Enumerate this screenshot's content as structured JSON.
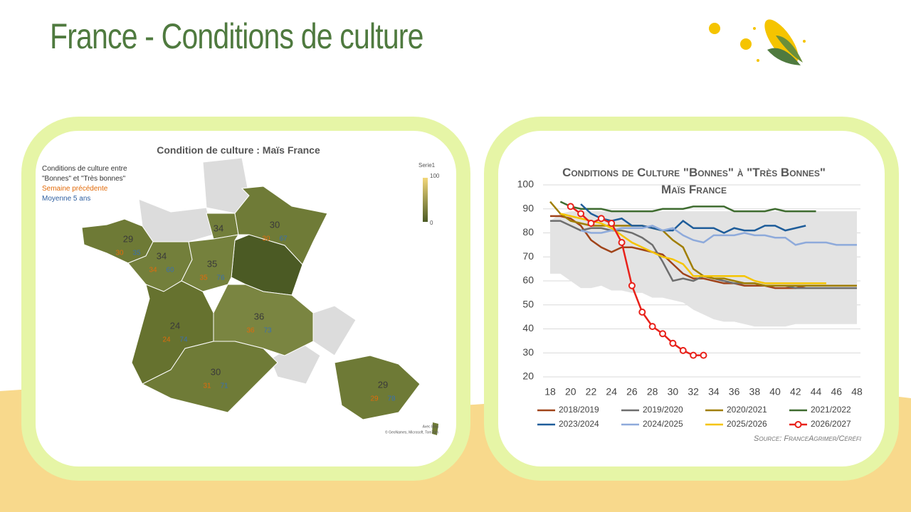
{
  "header": {
    "title": "France  - Conditions de culture"
  },
  "map": {
    "title": "Condition de culture : Maïs France",
    "legend": {
      "main": "Conditions de culture entre \"Bonnes\" et \"Très bonnes\"",
      "previous": "Semaine précédente",
      "average": "Moyenne 5 ans",
      "scale_title": "Serie1",
      "scale_max": "100",
      "scale_min": "0"
    },
    "attribution": "© GeoNames, Microsoft, TomTom",
    "bing": "Avec Bing",
    "regions": [
      {
        "value": "29",
        "previous": "30",
        "average": "35",
        "color": "#6e7a36"
      },
      {
        "value": "34",
        "previous": "34",
        "average": "60",
        "color": "#737f3b"
      },
      {
        "value": "34",
        "previous": "45",
        "average": "76",
        "color": "#737f3b"
      },
      {
        "value": "30",
        "previous": "30",
        "average": "67",
        "color": "#6f7b37"
      },
      {
        "value": "35",
        "previous": "35",
        "average": "76",
        "color": "#75813d"
      },
      {
        "value": "24",
        "previous": "24",
        "average": "74",
        "color": "#66722f"
      },
      {
        "value": "36",
        "previous": "36",
        "average": "73",
        "color": "#7a8541"
      },
      {
        "value": "30",
        "previous": "31",
        "average": "71",
        "color": "#6f7b37"
      },
      {
        "value": "29",
        "previous": "29",
        "average": "78",
        "color": "#6e7a36"
      }
    ]
  },
  "chart_data": {
    "type": "line",
    "title": "Conditions de Culture \"Bonnes\" à \"Très Bonnes\" Maïs France",
    "source": "Source: FranceAgrimer/Céréfi",
    "x": [
      18,
      19,
      20,
      21,
      22,
      23,
      24,
      25,
      26,
      27,
      28,
      29,
      30,
      31,
      32,
      33,
      34,
      35,
      36,
      37,
      38,
      39,
      40,
      41,
      42,
      43,
      44,
      45,
      46,
      47,
      48
    ],
    "xlim": [
      18,
      48
    ],
    "xticks": [
      18,
      20,
      22,
      24,
      26,
      28,
      30,
      32,
      34,
      36,
      38,
      40,
      42,
      44,
      46,
      48
    ],
    "ylim": [
      20,
      100
    ],
    "yticks": [
      20,
      30,
      40,
      50,
      60,
      70,
      80,
      90,
      100
    ],
    "grid": true,
    "band": {
      "color": "#e3e3e3",
      "upper": [
        85,
        88,
        89,
        89,
        89,
        89,
        89,
        89,
        89,
        89,
        89,
        89,
        89,
        89,
        89,
        89,
        89,
        89,
        89,
        89,
        89,
        89,
        89,
        89,
        89,
        89,
        89,
        89,
        89,
        89,
        89
      ],
      "lower": [
        63,
        63,
        60,
        57,
        57,
        58,
        56,
        56,
        55,
        55,
        53,
        53,
        52,
        51,
        48,
        46,
        44,
        43,
        43,
        42,
        41,
        41,
        41,
        41,
        42,
        42,
        42,
        42,
        42,
        42,
        42
      ]
    },
    "series": [
      {
        "name": "2018/2019",
        "color": "#a0441a",
        "values": [
          87,
          87,
          86,
          83,
          77,
          74,
          72,
          74,
          74,
          73,
          72,
          71,
          67,
          63,
          61,
          61,
          60,
          59,
          59,
          58,
          58,
          58,
          57,
          57,
          57,
          58,
          58,
          58,
          58,
          58,
          58
        ]
      },
      {
        "name": "2019/2020",
        "color": "#6e6e6e",
        "values": [
          85,
          85,
          83,
          81,
          82,
          82,
          81,
          81,
          80,
          78,
          75,
          68,
          60,
          61,
          60,
          62,
          61,
          60,
          59,
          59,
          59,
          58,
          58,
          58,
          57,
          57,
          57,
          57,
          57,
          57,
          57
        ]
      },
      {
        "name": "2020/2021",
        "color": "#a07e00",
        "values": [
          93,
          88,
          85,
          84,
          83,
          83,
          83,
          83,
          83,
          83,
          82,
          81,
          77,
          74,
          65,
          62,
          61,
          61,
          60,
          59,
          59,
          58,
          58,
          58,
          58,
          58,
          58,
          58,
          58,
          58,
          58
        ]
      },
      {
        "name": "2021/2022",
        "color": "#3e6b2f",
        "values": [
          null,
          93,
          91,
          90,
          90,
          90,
          89,
          89,
          89,
          89,
          89,
          90,
          90,
          90,
          91,
          91,
          91,
          91,
          89,
          89,
          89,
          89,
          90,
          89,
          89,
          89,
          89,
          null,
          null,
          null,
          null
        ]
      },
      {
        "name": "2023/2024",
        "color": "#1f5d9a",
        "values": [
          null,
          null,
          null,
          92,
          88,
          86,
          85,
          86,
          83,
          83,
          82,
          81,
          81,
          85,
          82,
          82,
          82,
          80,
          82,
          81,
          81,
          83,
          83,
          81,
          82,
          83,
          null,
          null,
          null,
          null,
          null
        ]
      },
      {
        "name": "2024/2025",
        "color": "#8eaadb",
        "values": [
          null,
          null,
          null,
          81,
          80,
          80,
          81,
          82,
          82,
          82,
          83,
          81,
          82,
          79,
          77,
          76,
          79,
          79,
          79,
          80,
          79,
          79,
          78,
          78,
          75,
          76,
          76,
          76,
          75,
          75,
          75
        ]
      },
      {
        "name": "2025/2026",
        "color": "#f5c400",
        "values": [
          null,
          88,
          87,
          86,
          85,
          84,
          82,
          79,
          76,
          74,
          72,
          70,
          69,
          67,
          62,
          62,
          62,
          62,
          62,
          62,
          60,
          59,
          59,
          59,
          59,
          59,
          59,
          59,
          null,
          null,
          null
        ]
      },
      {
        "name": "2026/2027",
        "color": "#e8211a",
        "markers": true,
        "values": [
          null,
          null,
          91,
          88,
          84,
          86,
          84,
          76,
          58,
          47,
          41,
          38,
          34,
          31,
          29,
          29,
          null,
          null,
          null,
          null,
          null,
          null,
          null,
          null,
          null,
          null,
          null,
          null,
          null,
          null,
          null
        ]
      }
    ]
  }
}
